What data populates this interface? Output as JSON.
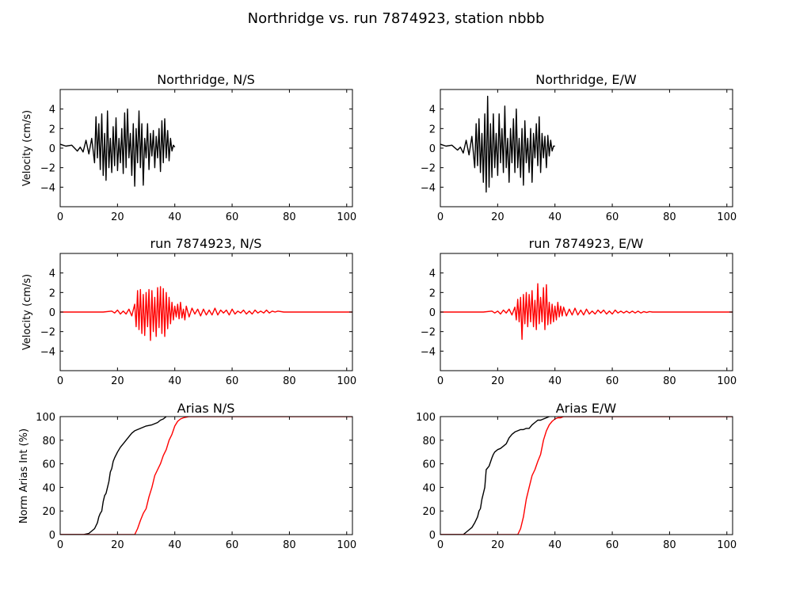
{
  "figure_title": "Northridge vs. run 7874923, station nbbb",
  "colors": {
    "recorded": "#000000",
    "simulated": "#ff0000"
  },
  "chart_data": [
    {
      "id": "ns_obs",
      "type": "line",
      "title": "Northridge, N/S",
      "ylabel": "Velocity (cm/s)",
      "xlabel": "",
      "xlim": [
        0,
        102
      ],
      "ylim": [
        -6,
        6
      ],
      "xticks": [
        0,
        20,
        40,
        60,
        80,
        100
      ],
      "yticks": [
        -4,
        -2,
        0,
        2,
        4
      ],
      "series": [
        {
          "color": "#000000",
          "x": [
            0,
            2,
            4,
            6,
            7,
            8,
            9,
            10,
            11,
            12,
            12.5,
            13,
            13.5,
            14,
            14.5,
            15,
            15.5,
            16,
            16.5,
            17,
            17.5,
            18,
            18.5,
            19,
            19.5,
            20,
            20.5,
            21,
            21.5,
            22,
            22.5,
            23,
            23.5,
            24,
            24.5,
            25,
            25.5,
            26,
            26.5,
            27,
            27.5,
            28,
            28.5,
            29,
            29.5,
            30,
            30.5,
            31,
            31.5,
            32,
            32.5,
            33,
            33.5,
            34,
            34.5,
            35,
            35.5,
            36,
            36.5,
            37,
            37.5,
            38,
            38.5,
            39,
            39.5,
            40
          ],
          "y": [
            0.4,
            0.2,
            0.3,
            -0.3,
            0.1,
            -0.4,
            0.8,
            -0.6,
            1.0,
            -1.5,
            3.2,
            -1.0,
            2.5,
            -2.2,
            3.5,
            -2.8,
            1.5,
            -3.3,
            3.8,
            -2.0,
            1.0,
            -2.5,
            2.2,
            -1.8,
            3.1,
            -2.3,
            1.0,
            -1.5,
            2.0,
            -2.6,
            3.6,
            -2.0,
            4.0,
            -1.0,
            1.5,
            -2.8,
            2.5,
            -3.9,
            2.0,
            -1.5,
            3.8,
            -2.0,
            2.5,
            -3.8,
            1.0,
            -1.0,
            2.5,
            -2.2,
            1.5,
            -0.8,
            1.8,
            -2.0,
            1.2,
            -1.0,
            2.0,
            -2.4,
            2.8,
            -1.5,
            3.0,
            -1.0,
            1.8,
            -1.3,
            1.0,
            -0.3,
            0.3,
            0.1
          ]
        }
      ]
    },
    {
      "id": "ew_obs",
      "type": "line",
      "title": "Northridge, E/W",
      "ylabel": "",
      "xlabel": "",
      "xlim": [
        0,
        102
      ],
      "ylim": [
        -6,
        6
      ],
      "xticks": [
        0,
        20,
        40,
        60,
        80,
        100
      ],
      "yticks": [
        -4,
        -2,
        0,
        2,
        4
      ],
      "series": [
        {
          "color": "#000000",
          "x": [
            0,
            2,
            4,
            6,
            7,
            8,
            9,
            10,
            11,
            12,
            12.5,
            13,
            13.5,
            14,
            14.5,
            15,
            15.5,
            16,
            16.5,
            17,
            17.5,
            18,
            18.5,
            19,
            19.5,
            20,
            20.5,
            21,
            21.5,
            22,
            22.5,
            23,
            23.5,
            24,
            24.5,
            25,
            25.5,
            26,
            26.5,
            27,
            27.5,
            28,
            28.5,
            29,
            29.5,
            30,
            30.5,
            31,
            31.5,
            32,
            32.5,
            33,
            33.5,
            34,
            34.5,
            35,
            35.5,
            36,
            36.5,
            37,
            37.5,
            38,
            38.5,
            39,
            39.5,
            40
          ],
          "y": [
            0.4,
            0.2,
            0.3,
            -0.2,
            0.1,
            -0.5,
            0.8,
            -0.7,
            1.2,
            -2.0,
            2.5,
            -1.8,
            3.0,
            -2.5,
            1.5,
            -3.5,
            3.5,
            -4.5,
            5.3,
            -4.0,
            2.5,
            -3.0,
            3.5,
            -2.0,
            1.5,
            -2.8,
            3.5,
            -1.5,
            2.0,
            -2.5,
            4.3,
            -2.0,
            1.0,
            -3.5,
            2.0,
            -1.5,
            3.0,
            -2.5,
            4.0,
            -2.0,
            1.0,
            -3.0,
            2.0,
            -3.8,
            2.8,
            -1.5,
            1.0,
            -2.5,
            2.0,
            -3.5,
            1.5,
            -1.0,
            2.5,
            -1.8,
            3.2,
            -2.5,
            1.5,
            -1.0,
            1.2,
            -2.0,
            1.3,
            -0.8,
            0.8,
            -0.3,
            0.2,
            0.2
          ]
        }
      ]
    },
    {
      "id": "ns_sim",
      "type": "line",
      "title": "run 7874923, N/S",
      "ylabel": "Velocity (cm/s)",
      "xlabel": "",
      "xlim": [
        0,
        102
      ],
      "ylim": [
        -6,
        6
      ],
      "xticks": [
        0,
        20,
        40,
        60,
        80,
        100
      ],
      "yticks": [
        -4,
        -2,
        0,
        2,
        4
      ],
      "series": [
        {
          "color": "#ff0000",
          "x": [
            0,
            15,
            18,
            19,
            20,
            21,
            22,
            23,
            24,
            25,
            26,
            26.5,
            27,
            27.5,
            28,
            28.5,
            29,
            29.5,
            30,
            30.5,
            31,
            31.5,
            32,
            32.5,
            33,
            33.5,
            34,
            34.5,
            35,
            35.5,
            36,
            36.5,
            37,
            37.5,
            38,
            38.5,
            39,
            39.5,
            40,
            40.5,
            41,
            41.5,
            42,
            42.5,
            43,
            43.5,
            44,
            45,
            46,
            47,
            48,
            49,
            50,
            51,
            52,
            53,
            54,
            55,
            56,
            57,
            58,
            59,
            60,
            61,
            62,
            63,
            64,
            65,
            66,
            67,
            68,
            69,
            70,
            71,
            72,
            73,
            74,
            75,
            76,
            78,
            80,
            102
          ],
          "y": [
            0,
            0,
            0.1,
            -0.1,
            0.2,
            -0.2,
            0.1,
            -0.2,
            0.3,
            -0.4,
            0.8,
            -1.5,
            2.2,
            -1.8,
            2.3,
            -2.2,
            1.8,
            -2.4,
            2.0,
            -1.5,
            2.3,
            -2.9,
            2.2,
            -2.0,
            1.5,
            -2.5,
            2.5,
            -1.6,
            2.6,
            -2.2,
            2.4,
            -2.5,
            2.0,
            -1.7,
            1.5,
            -1.2,
            1.0,
            -0.8,
            0.6,
            -0.5,
            0.8,
            -0.7,
            1.0,
            -0.6,
            0.3,
            -0.8,
            0.6,
            -0.5,
            0.4,
            -0.2,
            0.3,
            -0.4,
            0.3,
            -0.3,
            0.2,
            -0.3,
            0.4,
            -0.3,
            0.2,
            -0.1,
            0.2,
            -0.3,
            0.3,
            -0.2,
            0.1,
            -0.1,
            0.2,
            -0.2,
            0.1,
            -0.2,
            0.2,
            -0.1,
            0.1,
            -0.1,
            0.2,
            -0.1,
            0.1,
            0,
            0.1,
            0,
            0,
            0
          ]
        }
      ]
    },
    {
      "id": "ew_sim",
      "type": "line",
      "title": "run 7874923, E/W",
      "ylabel": "",
      "xlabel": "",
      "xlim": [
        0,
        102
      ],
      "ylim": [
        -6,
        6
      ],
      "xticks": [
        0,
        20,
        40,
        60,
        80,
        100
      ],
      "yticks": [
        -4,
        -2,
        0,
        2,
        4
      ],
      "series": [
        {
          "color": "#ff0000",
          "x": [
            0,
            15,
            18,
            19,
            20,
            21,
            22,
            23,
            24,
            25,
            26,
            26.5,
            27,
            27.5,
            28,
            28.5,
            29,
            29.5,
            30,
            30.5,
            31,
            31.5,
            32,
            32.5,
            33,
            33.5,
            34,
            34.5,
            35,
            35.5,
            36,
            36.5,
            37,
            37.5,
            38,
            38.5,
            39,
            39.5,
            40,
            40.5,
            41,
            41.5,
            42,
            42.5,
            43,
            44,
            45,
            46,
            47,
            48,
            49,
            50,
            51,
            52,
            53,
            54,
            55,
            56,
            57,
            58,
            59,
            60,
            61,
            62,
            63,
            64,
            65,
            66,
            67,
            68,
            69,
            70,
            71,
            72,
            73,
            74,
            75,
            76,
            78,
            80,
            102
          ],
          "y": [
            0,
            0,
            0.1,
            -0.1,
            0.1,
            -0.2,
            0.2,
            -0.1,
            0.3,
            -0.3,
            0.5,
            -0.8,
            1.3,
            -1.0,
            1.5,
            -2.8,
            1.8,
            -1.2,
            2.0,
            -1.5,
            1.8,
            -1.0,
            2.2,
            -1.5,
            1.2,
            -1.8,
            2.9,
            -1.2,
            1.5,
            -1.0,
            2.5,
            -1.8,
            2.8,
            -1.3,
            1.0,
            -1.2,
            0.8,
            -1.0,
            0.6,
            -0.8,
            1.0,
            -0.5,
            0.6,
            -0.4,
            0.5,
            -0.4,
            0.3,
            -0.3,
            0.4,
            -0.3,
            0.2,
            -0.3,
            0.3,
            -0.2,
            0.1,
            -0.2,
            0.2,
            -0.1,
            0.2,
            -0.2,
            0.1,
            -0.2,
            0.2,
            -0.1,
            0.1,
            -0.1,
            0.1,
            -0.1,
            0.1,
            -0.1,
            0.1,
            -0.1,
            0.05,
            -0.05,
            0.05,
            0,
            0,
            0,
            0,
            0,
            0
          ]
        }
      ]
    },
    {
      "id": "ns_arias",
      "type": "line",
      "title": "Arias N/S",
      "ylabel": "Norm Arias Int (%)",
      "xlabel": "",
      "xlim": [
        0,
        102
      ],
      "ylim": [
        0,
        100
      ],
      "xticks": [
        0,
        20,
        40,
        60,
        80,
        100
      ],
      "yticks": [
        0,
        20,
        40,
        60,
        80,
        100
      ],
      "series": [
        {
          "color": "#000000",
          "x": [
            0,
            8,
            10,
            11,
            12,
            13,
            13.5,
            14,
            14.5,
            15,
            15.5,
            16,
            17,
            17.5,
            18,
            18.5,
            19,
            20,
            21,
            22,
            23,
            24,
            25,
            26,
            27,
            28,
            30,
            32,
            34,
            35,
            36,
            37
          ],
          "y": [
            0,
            0,
            1,
            3,
            5,
            10,
            15,
            18,
            20,
            28,
            33,
            35,
            45,
            53,
            56,
            62,
            65,
            70,
            74,
            77,
            80,
            83,
            86,
            88,
            89,
            90,
            92,
            93,
            95,
            97,
            98,
            100
          ]
        },
        {
          "color": "#ff0000",
          "x": [
            0,
            26,
            27,
            28,
            29,
            30,
            31,
            32,
            32.5,
            33,
            34,
            35,
            36,
            37,
            38,
            39,
            40,
            41,
            42,
            43,
            45,
            50,
            102
          ],
          "y": [
            0,
            0,
            5,
            12,
            18,
            22,
            32,
            40,
            45,
            50,
            55,
            60,
            67,
            72,
            80,
            85,
            92,
            96,
            98,
            99,
            100,
            100,
            100
          ]
        }
      ]
    },
    {
      "id": "ew_arias",
      "type": "line",
      "title": "Arias E/W",
      "ylabel": "",
      "xlabel": "",
      "xlim": [
        0,
        102
      ],
      "ylim": [
        0,
        100
      ],
      "xticks": [
        0,
        20,
        40,
        60,
        80,
        100
      ],
      "yticks": [
        0,
        20,
        40,
        60,
        80,
        100
      ],
      "series": [
        {
          "color": "#000000",
          "x": [
            0,
            8,
            9,
            10,
            11,
            12,
            13,
            13.5,
            14,
            14.5,
            15,
            15.5,
            16,
            17,
            18,
            18.5,
            19,
            20,
            21,
            22,
            23,
            24,
            25,
            26,
            27,
            28,
            29,
            30,
            31,
            32,
            33,
            34,
            35,
            36,
            37,
            38
          ],
          "y": [
            0,
            0,
            2,
            4,
            6,
            10,
            15,
            20,
            22,
            30,
            35,
            40,
            55,
            58,
            65,
            68,
            70,
            72,
            73,
            75,
            77,
            82,
            85,
            87,
            88,
            89,
            89,
            90,
            90,
            93,
            95,
            97,
            97,
            98,
            99,
            100
          ]
        },
        {
          "color": "#ff0000",
          "x": [
            0,
            27,
            28,
            29,
            30,
            31,
            32,
            33,
            34,
            35,
            36,
            37,
            38,
            39,
            40,
            41,
            42,
            43,
            45,
            50,
            102
          ],
          "y": [
            0,
            0,
            5,
            15,
            30,
            40,
            50,
            55,
            62,
            68,
            80,
            88,
            93,
            96,
            98,
            99,
            99,
            100,
            100,
            100,
            100
          ]
        }
      ]
    }
  ]
}
